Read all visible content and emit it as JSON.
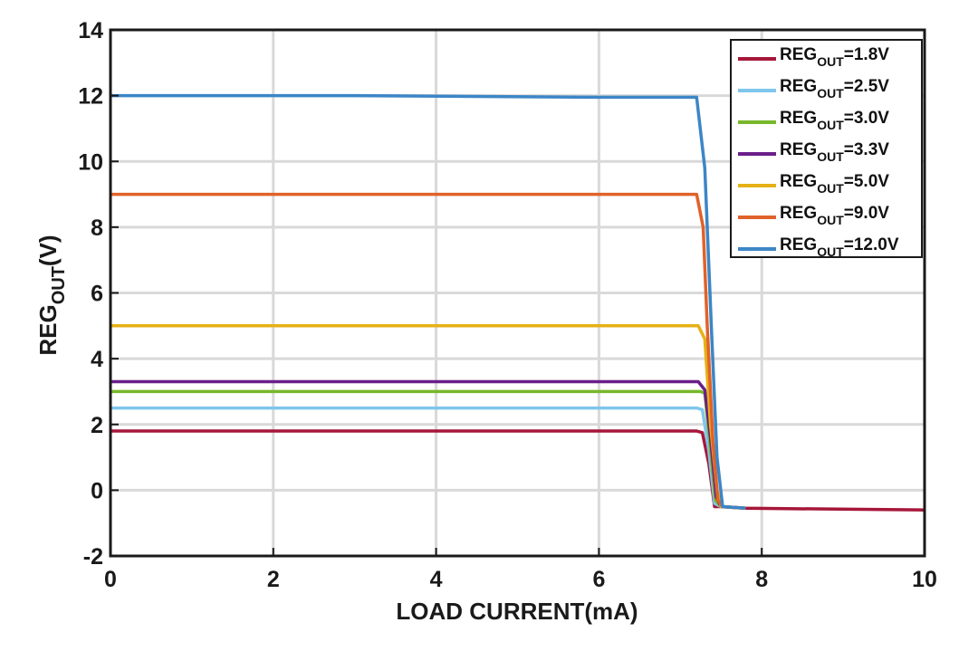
{
  "chart_data": {
    "type": "line",
    "title": "",
    "xlabel": "LOAD CURRENT(mA)",
    "ylabel": {
      "main": "REG",
      "sub": "OUT",
      "suffix": "(V)"
    },
    "xlim": [
      0,
      10
    ],
    "ylim": [
      -2,
      14
    ],
    "xticks": [
      0,
      2,
      4,
      6,
      8,
      10
    ],
    "yticks": [
      -2,
      0,
      2,
      4,
      6,
      8,
      10,
      12,
      14
    ],
    "grid": true,
    "legend_position": "top-right",
    "series": [
      {
        "name": "REGOUT=1.8V",
        "label_main": "REG",
        "label_sub": "OUT",
        "label_suffix": "=1.8V",
        "color": "#a6173a",
        "x": [
          0,
          7.2,
          7.27,
          7.35,
          7.42,
          7.5,
          7.8,
          10
        ],
        "y": [
          1.8,
          1.8,
          1.75,
          0.8,
          -0.5,
          -0.5,
          -0.55,
          -0.6
        ]
      },
      {
        "name": "REGOUT=2.5V",
        "label_main": "REG",
        "label_sub": "OUT",
        "label_suffix": "=2.5V",
        "color": "#7fc6ec",
        "x": [
          0,
          7.2,
          7.27,
          7.35,
          7.42,
          7.5,
          7.8
        ],
        "y": [
          2.5,
          2.5,
          2.45,
          1.2,
          -0.4,
          -0.5,
          -0.55
        ]
      },
      {
        "name": "REGOUT=3.0V",
        "label_main": "REG",
        "label_sub": "OUT",
        "label_suffix": "=3.0V",
        "color": "#77b82a",
        "x": [
          0,
          7.25,
          7.3,
          7.36,
          7.43,
          7.5,
          7.8
        ],
        "y": [
          3.0,
          3.0,
          2.95,
          1.5,
          -0.3,
          -0.5,
          -0.55
        ]
      },
      {
        "name": "REGOUT=3.3V",
        "label_main": "REG",
        "label_sub": "OUT",
        "label_suffix": "=3.3V",
        "color": "#6a1f8a",
        "x": [
          0,
          7.22,
          7.3,
          7.37,
          7.44,
          7.5,
          7.8
        ],
        "y": [
          3.3,
          3.3,
          3.05,
          1.6,
          -0.2,
          -0.5,
          -0.55
        ]
      },
      {
        "name": "REGOUT=5.0V",
        "label_main": "REG",
        "label_sub": "OUT",
        "label_suffix": "=5.0V",
        "color": "#e6b117",
        "x": [
          0,
          7.22,
          7.3,
          7.37,
          7.45,
          7.5,
          7.8
        ],
        "y": [
          5.0,
          5.0,
          4.6,
          2.0,
          0.0,
          -0.5,
          -0.55
        ]
      },
      {
        "name": "REGOUT=9.0V",
        "label_main": "REG",
        "label_sub": "OUT",
        "label_suffix": "=9.0V",
        "color": "#e0622a",
        "x": [
          0,
          7.2,
          7.28,
          7.33,
          7.4,
          7.46,
          7.52,
          7.8
        ],
        "y": [
          9.0,
          9.0,
          8.0,
          5.0,
          1.5,
          -0.3,
          -0.5,
          -0.55
        ]
      },
      {
        "name": "REGOUT=12.0V",
        "label_main": "REG",
        "label_sub": "OUT",
        "label_suffix": "=12.0V",
        "color": "#3c86c6",
        "x": [
          0,
          3,
          6,
          7.2,
          7.3,
          7.38,
          7.45,
          7.52,
          7.8
        ],
        "y": [
          12.0,
          12.0,
          11.95,
          11.95,
          9.8,
          5.0,
          1.0,
          -0.5,
          -0.55
        ]
      }
    ]
  }
}
